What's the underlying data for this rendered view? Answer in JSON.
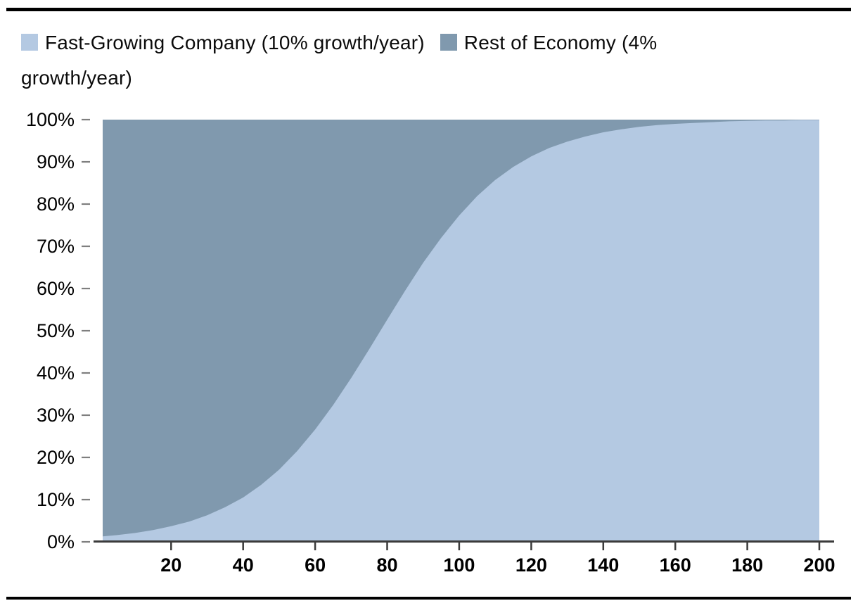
{
  "page": {
    "background": "#ffffff",
    "top_rule_color": "#000000",
    "bottom_rule_color": "#000000"
  },
  "legend": {
    "items": [
      {
        "label": "Fast-Growing Company (10% growth/year)",
        "color": "#b4c9e2"
      },
      {
        "label": "Rest of Economy (4% growth/year)",
        "color": "#8099ae"
      }
    ]
  },
  "chart_data": {
    "type": "area",
    "stacking": "percent",
    "title": "",
    "xlabel": "",
    "ylabel": "",
    "legend_position": "top",
    "grid": false,
    "x_axis": {
      "min": 1,
      "max": 200,
      "tick_values": [
        20,
        40,
        60,
        80,
        100,
        120,
        140,
        160,
        180,
        200
      ]
    },
    "y_axis": {
      "min": 0,
      "max": 100,
      "unit": "%",
      "tick_labels": [
        "0%",
        "10%",
        "20%",
        "30%",
        "40%",
        "50%",
        "60%",
        "70%",
        "80%",
        "90%",
        "100%"
      ]
    },
    "x_values": [
      1,
      5,
      10,
      15,
      20,
      25,
      30,
      35,
      40,
      45,
      50,
      55,
      60,
      65,
      70,
      75,
      80,
      85,
      90,
      95,
      100,
      105,
      110,
      115,
      120,
      125,
      130,
      135,
      140,
      145,
      150,
      155,
      160,
      165,
      170,
      175,
      180,
      185,
      190,
      195,
      200
    ],
    "series": [
      {
        "name": "Fast-Growing Company (10% growth/year)",
        "color": "#b4c9e2",
        "values_pct": [
          1.3,
          1.6,
          2.1,
          2.8,
          3.7,
          4.8,
          6.3,
          8.2,
          10.5,
          13.5,
          17.1,
          21.5,
          26.6,
          32.4,
          38.8,
          45.6,
          52.6,
          59.5,
          66.1,
          72.0,
          77.3,
          81.9,
          85.7,
          88.8,
          91.3,
          93.3,
          94.8,
          96.0,
          97.0,
          97.7,
          98.3,
          98.7,
          99.0,
          99.2,
          99.4,
          99.6,
          99.7,
          99.8,
          99.8,
          99.9,
          99.9
        ]
      },
      {
        "name": "Rest of Economy (4% growth/year)",
        "color": "#8099ae",
        "values_pct": [
          98.7,
          98.4,
          97.9,
          97.2,
          96.3,
          95.2,
          93.7,
          91.8,
          89.5,
          86.5,
          82.9,
          78.5,
          73.4,
          67.6,
          61.2,
          54.4,
          47.4,
          40.5,
          33.9,
          28.0,
          22.7,
          18.1,
          14.3,
          11.2,
          8.7,
          6.7,
          5.2,
          4.0,
          3.0,
          2.3,
          1.7,
          1.3,
          1.0,
          0.8,
          0.6,
          0.4,
          0.3,
          0.2,
          0.2,
          0.1,
          0.1
        ]
      }
    ],
    "axis_line_color": "#3b3b3b",
    "x_tick_color": "#3b3b3b",
    "y_tick_color": "#7f7f7f"
  }
}
